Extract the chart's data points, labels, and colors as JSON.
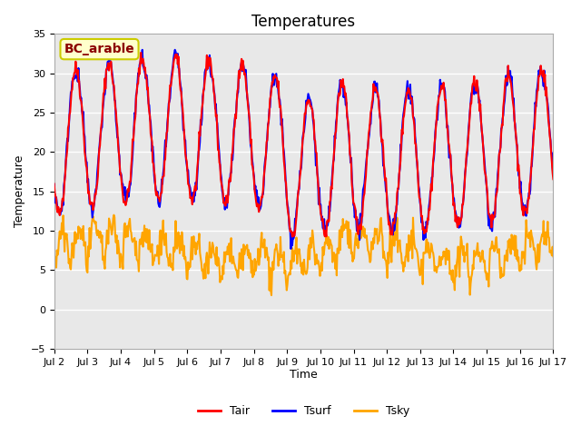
{
  "title": "Temperatures",
  "xlabel": "Time",
  "ylabel": "Temperature",
  "ylim": [
    -5,
    35
  ],
  "yticks": [
    -5,
    0,
    5,
    10,
    15,
    20,
    25,
    30,
    35
  ],
  "x_tick_positions": [
    0,
    1,
    2,
    3,
    4,
    5,
    6,
    7,
    8,
    9,
    10,
    11,
    12,
    13,
    14,
    15
  ],
  "x_labels": [
    "Jul 2",
    "Jul 3",
    "Jul 4",
    "Jul 5",
    "Jul 6",
    "Jul 7",
    "Jul 8",
    "Jul 9",
    "Jul 10",
    "Jul 11",
    "Jul 12",
    "Jul 13",
    "Jul 14",
    "Jul 15",
    "Jul 16",
    "Jul 17"
  ],
  "annotation_text": "BC_arable",
  "annotation_bg": "#ffffcc",
  "annotation_border": "#cccc00",
  "annotation_text_color": "#8b0000",
  "color_tair": "#ff0000",
  "color_tsurf": "#0000ff",
  "color_tsky": "#ffa500",
  "legend_labels": [
    "Tair",
    "Tsurf",
    "Tsky"
  ],
  "bg_color": "#e8e8e8",
  "grid_color": "#ffffff",
  "linewidth": 1.5
}
